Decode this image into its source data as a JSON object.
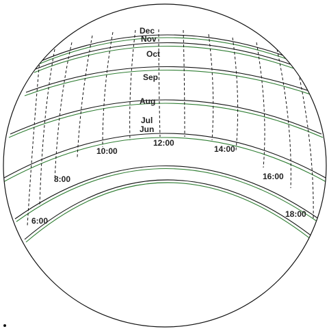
{
  "months": [
    "Dec",
    "Nov",
    "Oct",
    "Sep",
    "Aug",
    "Jul",
    "Jun"
  ],
  "hours": [
    "6:00",
    "8:00",
    "10:00",
    "12:00",
    "14:00",
    "16:00",
    "18:00"
  ],
  "colors": {
    "outline": "#111111",
    "dashed_hour_lines": "#111111",
    "green_month_lines": "#2e7d32"
  }
}
